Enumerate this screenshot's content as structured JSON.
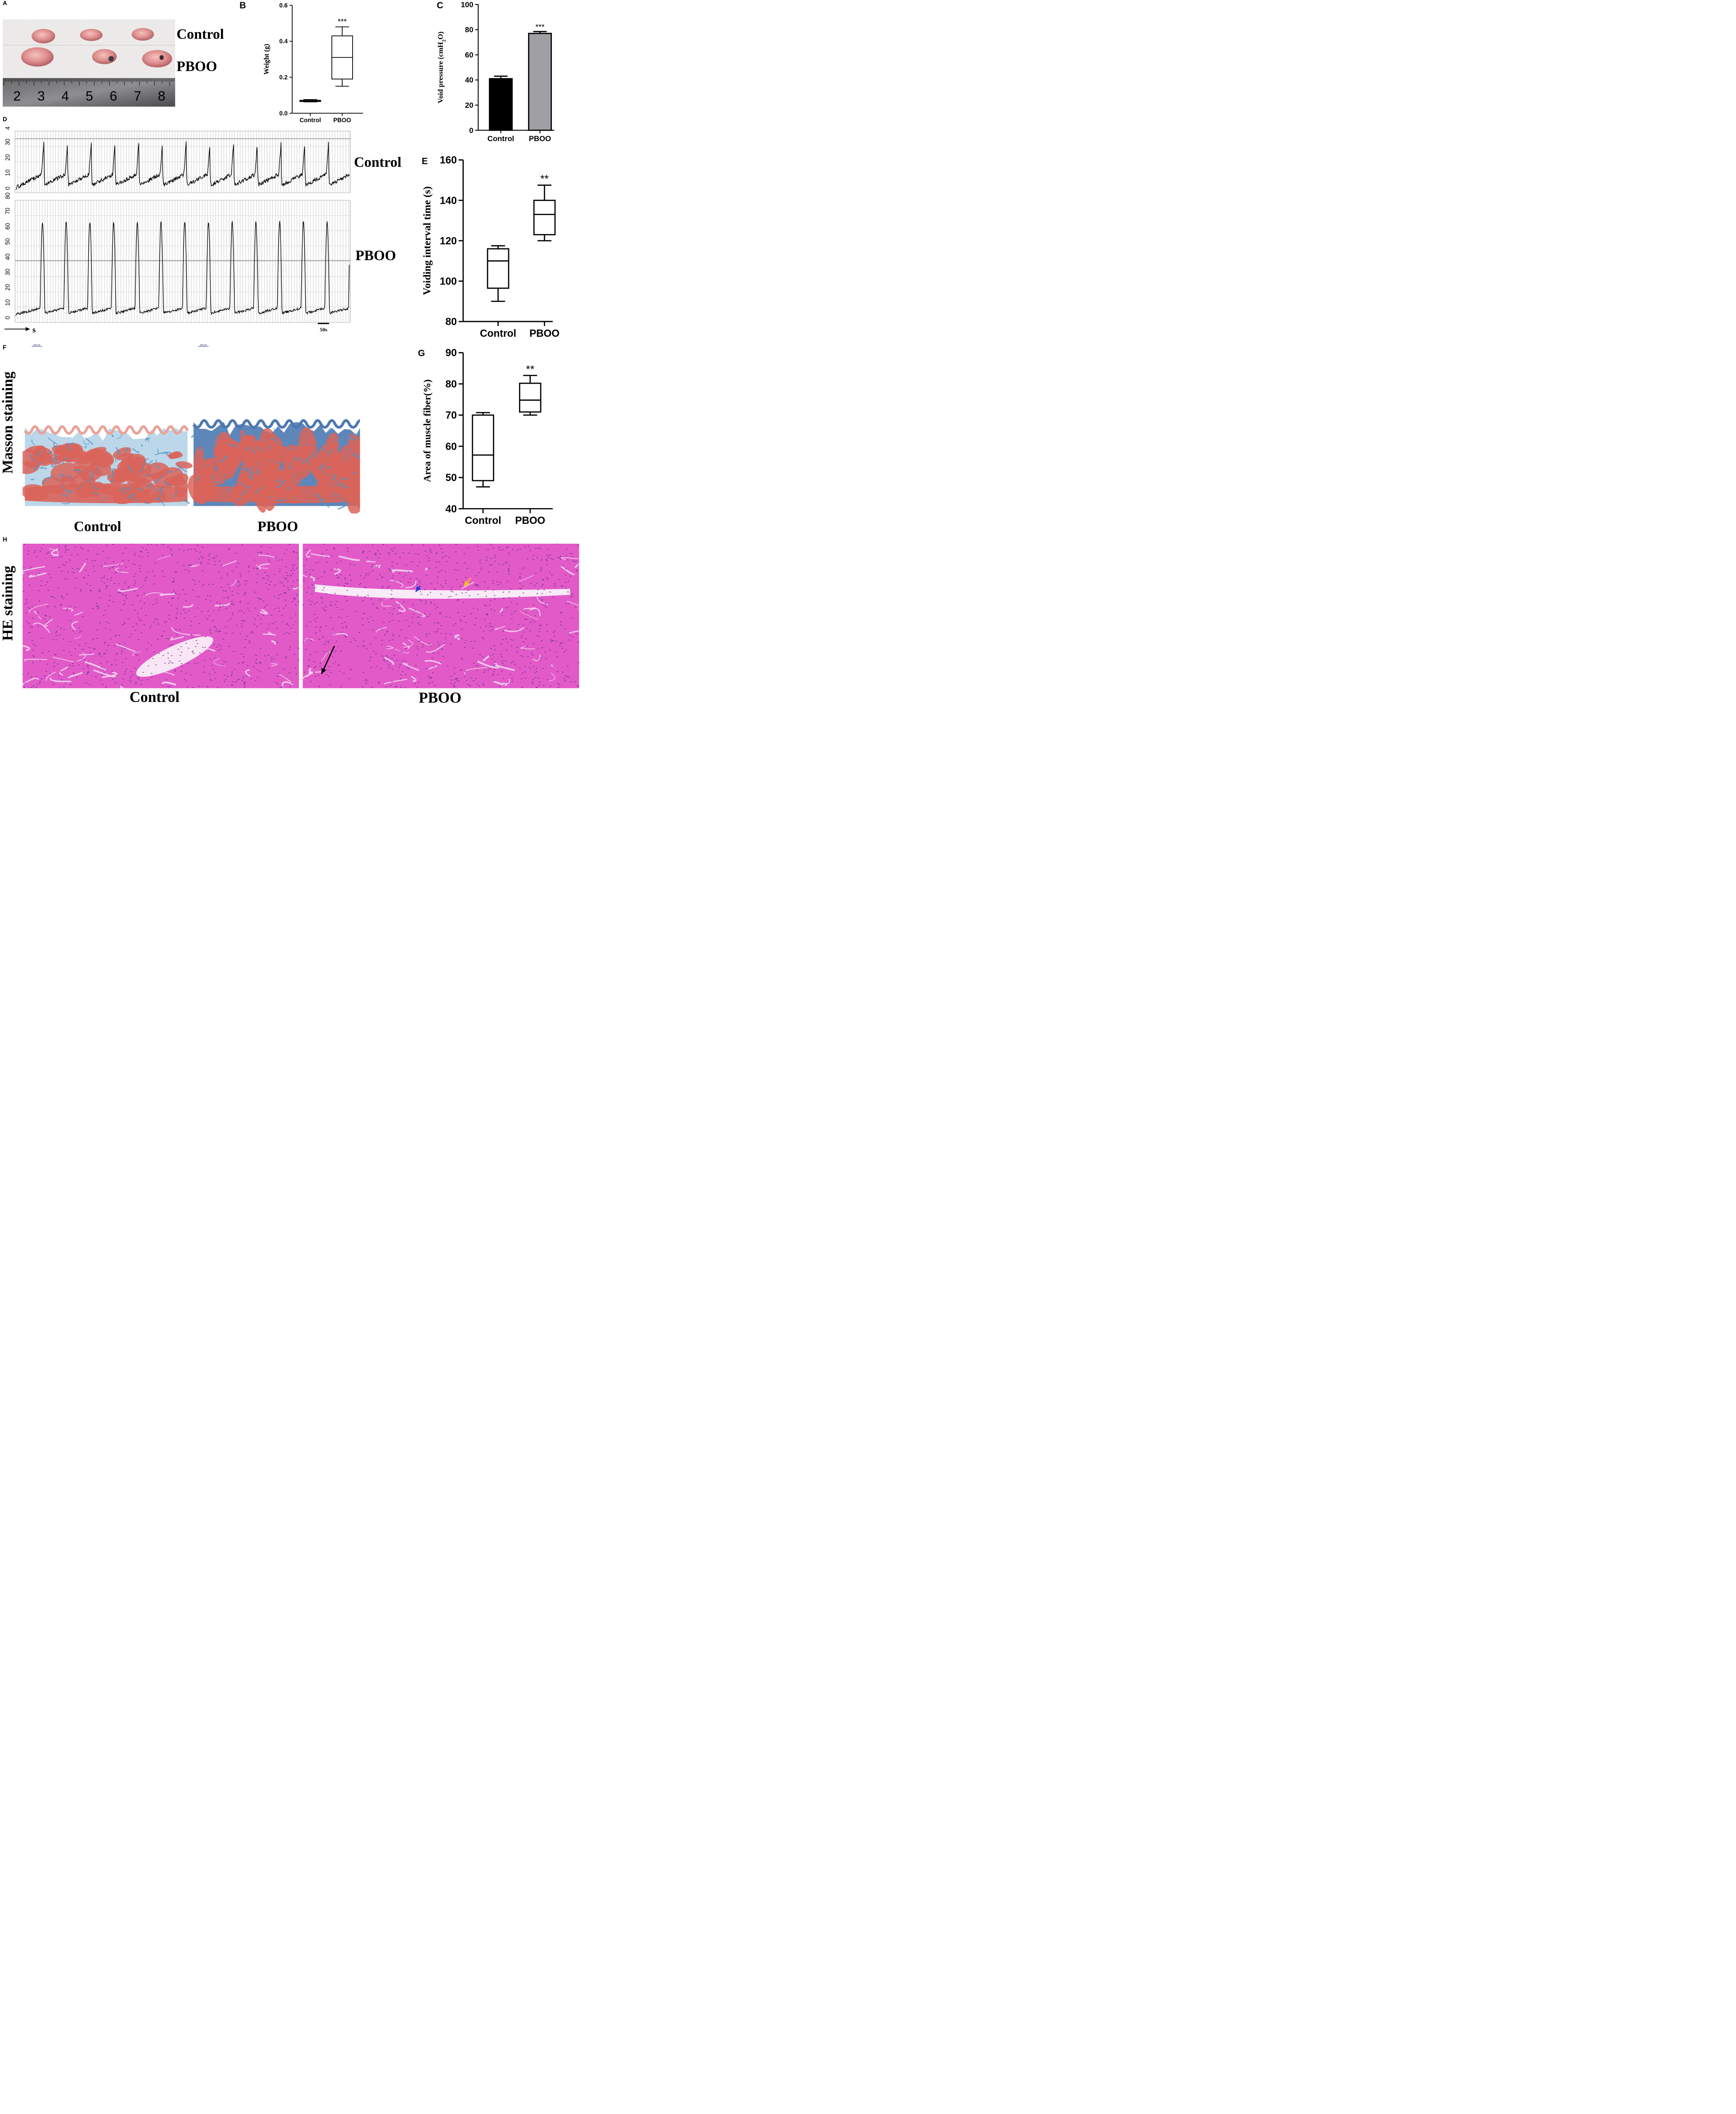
{
  "panels": {
    "A": {
      "letter": "A",
      "labels": {
        "control": "Control",
        "pboo": "PBOO"
      },
      "ruler_numbers": [
        "2",
        "3",
        "4",
        "5",
        "6",
        "7",
        "8"
      ]
    },
    "D": {
      "letter": "D",
      "labels": {
        "control": "Control",
        "pboo": "PBOO"
      },
      "control_yticks": [
        "0",
        "10",
        "20",
        "30",
        "40"
      ],
      "pboo_yticks": [
        "0",
        "10",
        "20",
        "30",
        "40",
        "50",
        "60",
        "70",
        "80"
      ],
      "time_arrow_label": "s",
      "scale_bar_label": "50s"
    },
    "F": {
      "letter": "F",
      "row_label": "Masson staining",
      "labels": {
        "control": "Control",
        "pboo": "PBOO"
      },
      "scale_label": "200 μm"
    },
    "H": {
      "letter": "H",
      "row_label": "HE staining",
      "labels": {
        "control": "Control",
        "pboo": "PBOO"
      }
    }
  },
  "colors": {
    "masson_red": "#d9645a",
    "masson_blue": "#4f93c4",
    "he_pink": "#e25ac8",
    "he_nuclei": "#5b2b86",
    "bar_control": "#000000",
    "bar_pboo": "#a0a0a4",
    "arrow_blue": "#1f3fd8",
    "arrow_yellow": "#f2c418",
    "arrow_black": "#000000"
  },
  "chart_data": [
    {
      "id": "B",
      "letter": "B",
      "type": "box",
      "categories": [
        "Control",
        "PBOO"
      ],
      "ylabel": "Weight (g)",
      "ylim": [
        0.0,
        0.6
      ],
      "yticks": [
        "0.0",
        "0.2",
        "0.4",
        "0.6"
      ],
      "boxes": [
        {
          "min": 0.063,
          "q1": 0.065,
          "median": 0.068,
          "q3": 0.072,
          "max": 0.076
        },
        {
          "min": 0.15,
          "q1": 0.19,
          "median": 0.31,
          "q3": 0.43,
          "max": 0.48
        }
      ],
      "annotations": [
        "",
        "***"
      ]
    },
    {
      "id": "C",
      "letter": "C",
      "type": "bar",
      "categories": [
        "Control",
        "PBOO"
      ],
      "ylabel": "Void pressure (cmH2O)",
      "ylabel_parts": [
        "Void pressure (cmH",
        "2",
        "O)"
      ],
      "ylim": [
        0,
        100
      ],
      "yticks": [
        "0",
        "20",
        "40",
        "60",
        "80",
        "100"
      ],
      "values": [
        41,
        77
      ],
      "errors": [
        2,
        1.5
      ],
      "annotations": [
        "",
        "***"
      ]
    },
    {
      "id": "E",
      "letter": "E",
      "type": "box",
      "categories": [
        "Control",
        "PBOO"
      ],
      "ylabel": "Voiding interval time (s)",
      "ylim": [
        80,
        160
      ],
      "yticks": [
        "80",
        "100",
        "120",
        "140",
        "160"
      ],
      "boxes": [
        {
          "min": 90,
          "q1": 96.5,
          "median": 110,
          "q3": 116,
          "max": 117.5
        },
        {
          "min": 120,
          "q1": 123,
          "median": 133,
          "q3": 140,
          "max": 147.5
        }
      ],
      "annotations": [
        "",
        "**"
      ]
    },
    {
      "id": "G",
      "letter": "G",
      "type": "box",
      "categories": [
        "Control",
        "PBOO"
      ],
      "ylabel": "Area of muscle fiber(%)",
      "ylim": [
        40,
        90
      ],
      "yticks": [
        "40",
        "50",
        "60",
        "70",
        "80",
        "90"
      ],
      "boxes": [
        {
          "min": 47,
          "q1": 49,
          "median": 57.2,
          "q3": 70,
          "max": 70.8
        },
        {
          "min": 70,
          "q1": 71,
          "median": 74.8,
          "q3": 80.2,
          "max": 82.7
        }
      ],
      "annotations": [
        "",
        "**"
      ]
    }
  ]
}
